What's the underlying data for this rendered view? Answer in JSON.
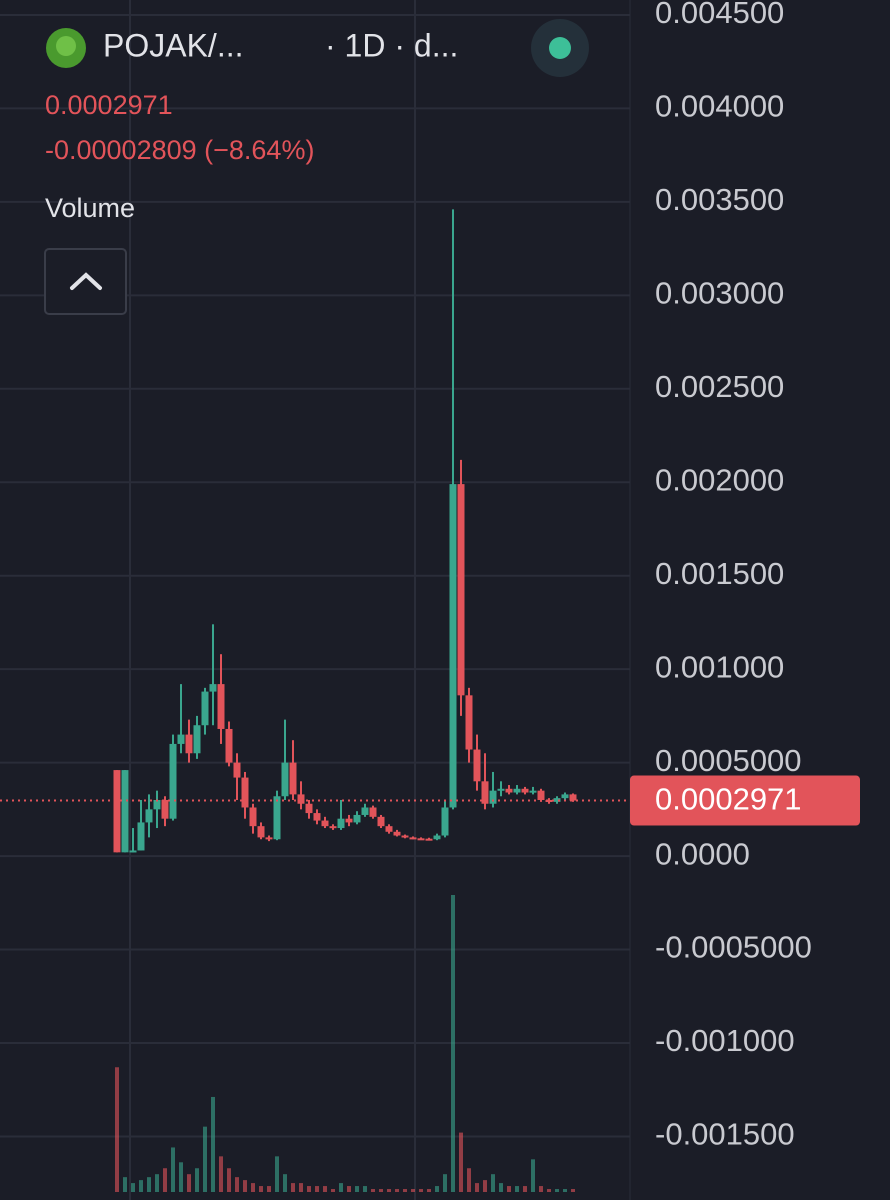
{
  "chart_data": {
    "type": "candlestick",
    "title": "POJAK/...",
    "interval": "· 1D · d...",
    "price": "0.0002971",
    "change": "-0.00002809 (−8.64%)",
    "indicator": "Volume",
    "up_color": "#3aa68e",
    "down_color": "#e2545a",
    "ylim": [
      -0.00184,
      0.00458
    ],
    "yticks": [
      {
        "value": 0.0045,
        "label": "0.004500"
      },
      {
        "value": 0.004,
        "label": "0.004000"
      },
      {
        "value": 0.0035,
        "label": "0.003500"
      },
      {
        "value": 0.003,
        "label": "0.003000"
      },
      {
        "value": 0.0025,
        "label": "0.002500"
      },
      {
        "value": 0.002,
        "label": "0.002000"
      },
      {
        "value": 0.0015,
        "label": "0.001500"
      },
      {
        "value": 0.001,
        "label": "0.001000"
      },
      {
        "value": 0.0005,
        "label": "0.0005000"
      },
      {
        "value": 0,
        "label": "0.0000"
      },
      {
        "value": -0.0005,
        "label": "-0.0005000"
      },
      {
        "value": -0.001,
        "label": "-0.001000"
      },
      {
        "value": -0.0015,
        "label": "-0.001500"
      }
    ],
    "last_price": 0.0002971,
    "ohlc": [
      [
        0.00046,
        0.00046,
        2e-05,
        2e-05
      ],
      [
        2e-05,
        0.00046,
        2e-05,
        0.00046
      ],
      [
        2e-05,
        0.00015,
        2e-05,
        3e-05
      ],
      [
        3e-05,
        0.0003,
        3e-05,
        0.00018
      ],
      [
        0.00018,
        0.00033,
        0.0001,
        0.00025
      ],
      [
        0.00025,
        0.00035,
        0.00015,
        0.0003
      ],
      [
        0.0003,
        0.00032,
        0.00016,
        0.0002
      ],
      [
        0.0002,
        0.00065,
        0.00019,
        0.0006
      ],
      [
        0.0006,
        0.00092,
        0.00055,
        0.00065
      ],
      [
        0.00065,
        0.00073,
        0.0005,
        0.00055
      ],
      [
        0.00055,
        0.00075,
        0.00052,
        0.0007
      ],
      [
        0.0007,
        0.0009,
        0.00065,
        0.00088
      ],
      [
        0.00088,
        0.00124,
        0.0007,
        0.00092
      ],
      [
        0.00092,
        0.00108,
        0.0006,
        0.00068
      ],
      [
        0.00068,
        0.00072,
        0.00048,
        0.0005
      ],
      [
        0.0005,
        0.00055,
        0.0003,
        0.00042
      ],
      [
        0.00042,
        0.00045,
        0.0002,
        0.00026
      ],
      [
        0.00026,
        0.00028,
        0.00012,
        0.00016
      ],
      [
        0.00016,
        0.00018,
        9e-05,
        0.0001
      ],
      [
        0.0001,
        0.00011,
        8e-05,
        9e-05
      ],
      [
        9e-05,
        0.00035,
        8.5e-05,
        0.00032
      ],
      [
        0.00032,
        0.00073,
        0.0003,
        0.0005
      ],
      [
        0.0005,
        0.00062,
        0.0003,
        0.00033
      ],
      [
        0.00033,
        0.0004,
        0.00025,
        0.00028
      ],
      [
        0.00028,
        0.0003,
        0.0002,
        0.00023
      ],
      [
        0.00023,
        0.00025,
        0.00017,
        0.00019
      ],
      [
        0.00019,
        0.00021,
        0.00015,
        0.00016
      ],
      [
        0.00016,
        0.00017,
        0.00014,
        0.00015
      ],
      [
        0.00015,
        0.0003,
        0.00014,
        0.0002
      ],
      [
        0.0002,
        0.00022,
        0.00016,
        0.00018
      ],
      [
        0.00018,
        0.00024,
        0.00017,
        0.00022
      ],
      [
        0.00022,
        0.00028,
        0.00021,
        0.00026
      ],
      [
        0.00026,
        0.00027,
        0.0002,
        0.00021
      ],
      [
        0.00021,
        0.00022,
        0.00015,
        0.00016
      ],
      [
        0.00016,
        0.00017,
        0.00012,
        0.00013
      ],
      [
        0.00013,
        0.00014,
        0.000105,
        0.00011
      ],
      [
        0.00011,
        0.000115,
        9.5e-05,
        0.0001
      ],
      [
        0.0001,
        0.000105,
        9e-05,
        9.5e-05
      ],
      [
        9.5e-05,
        0.0001,
        9e-05,
        9.3e-05
      ],
      [
        9.3e-05,
        9.8e-05,
        8.8e-05,
        9e-05
      ],
      [
        9e-05,
        0.00012,
        8.5e-05,
        0.00011
      ],
      [
        0.00011,
        0.0003,
        0.0001,
        0.00026
      ],
      [
        0.00026,
        0.00346,
        0.00025,
        0.00199
      ],
      [
        0.00199,
        0.00212,
        0.00075,
        0.00086
      ],
      [
        0.00086,
        0.0009,
        0.0005,
        0.00057
      ],
      [
        0.00057,
        0.00065,
        0.00035,
        0.0004
      ],
      [
        0.0004,
        0.00055,
        0.00025,
        0.00028
      ],
      [
        0.00028,
        0.00045,
        0.00026,
        0.00035
      ],
      [
        0.00035,
        0.0004,
        0.00032,
        0.00036
      ],
      [
        0.00036,
        0.00038,
        0.00033,
        0.00034
      ],
      [
        0.00034,
        0.00038,
        0.00033,
        0.00036
      ],
      [
        0.00036,
        0.00037,
        0.00033,
        0.00034
      ],
      [
        0.00034,
        0.00037,
        0.00033,
        0.00035
      ],
      [
        0.00035,
        0.00036,
        0.00029,
        0.0003
      ],
      [
        0.0003,
        0.00031,
        0.00028,
        0.00029
      ],
      [
        0.00029,
        0.00032,
        0.00028,
        0.00031
      ],
      [
        0.00031,
        0.00034,
        0.0003,
        0.00033
      ],
      [
        0.00033,
        0.000335,
        0.00029,
        0.0002971
      ]
    ],
    "volume": [
      42,
      5,
      3,
      4,
      5,
      6,
      8,
      15,
      10,
      6,
      8,
      22,
      32,
      12,
      8,
      5,
      4,
      3,
      2,
      2,
      12,
      6,
      3,
      3,
      2,
      2,
      2,
      1,
      3,
      2,
      2,
      2,
      1,
      1,
      1,
      1,
      1,
      1,
      1,
      1,
      2,
      6,
      100,
      20,
      8,
      3,
      4,
      6,
      3,
      2,
      2,
      2,
      11,
      2,
      1,
      1,
      1,
      1
    ]
  }
}
